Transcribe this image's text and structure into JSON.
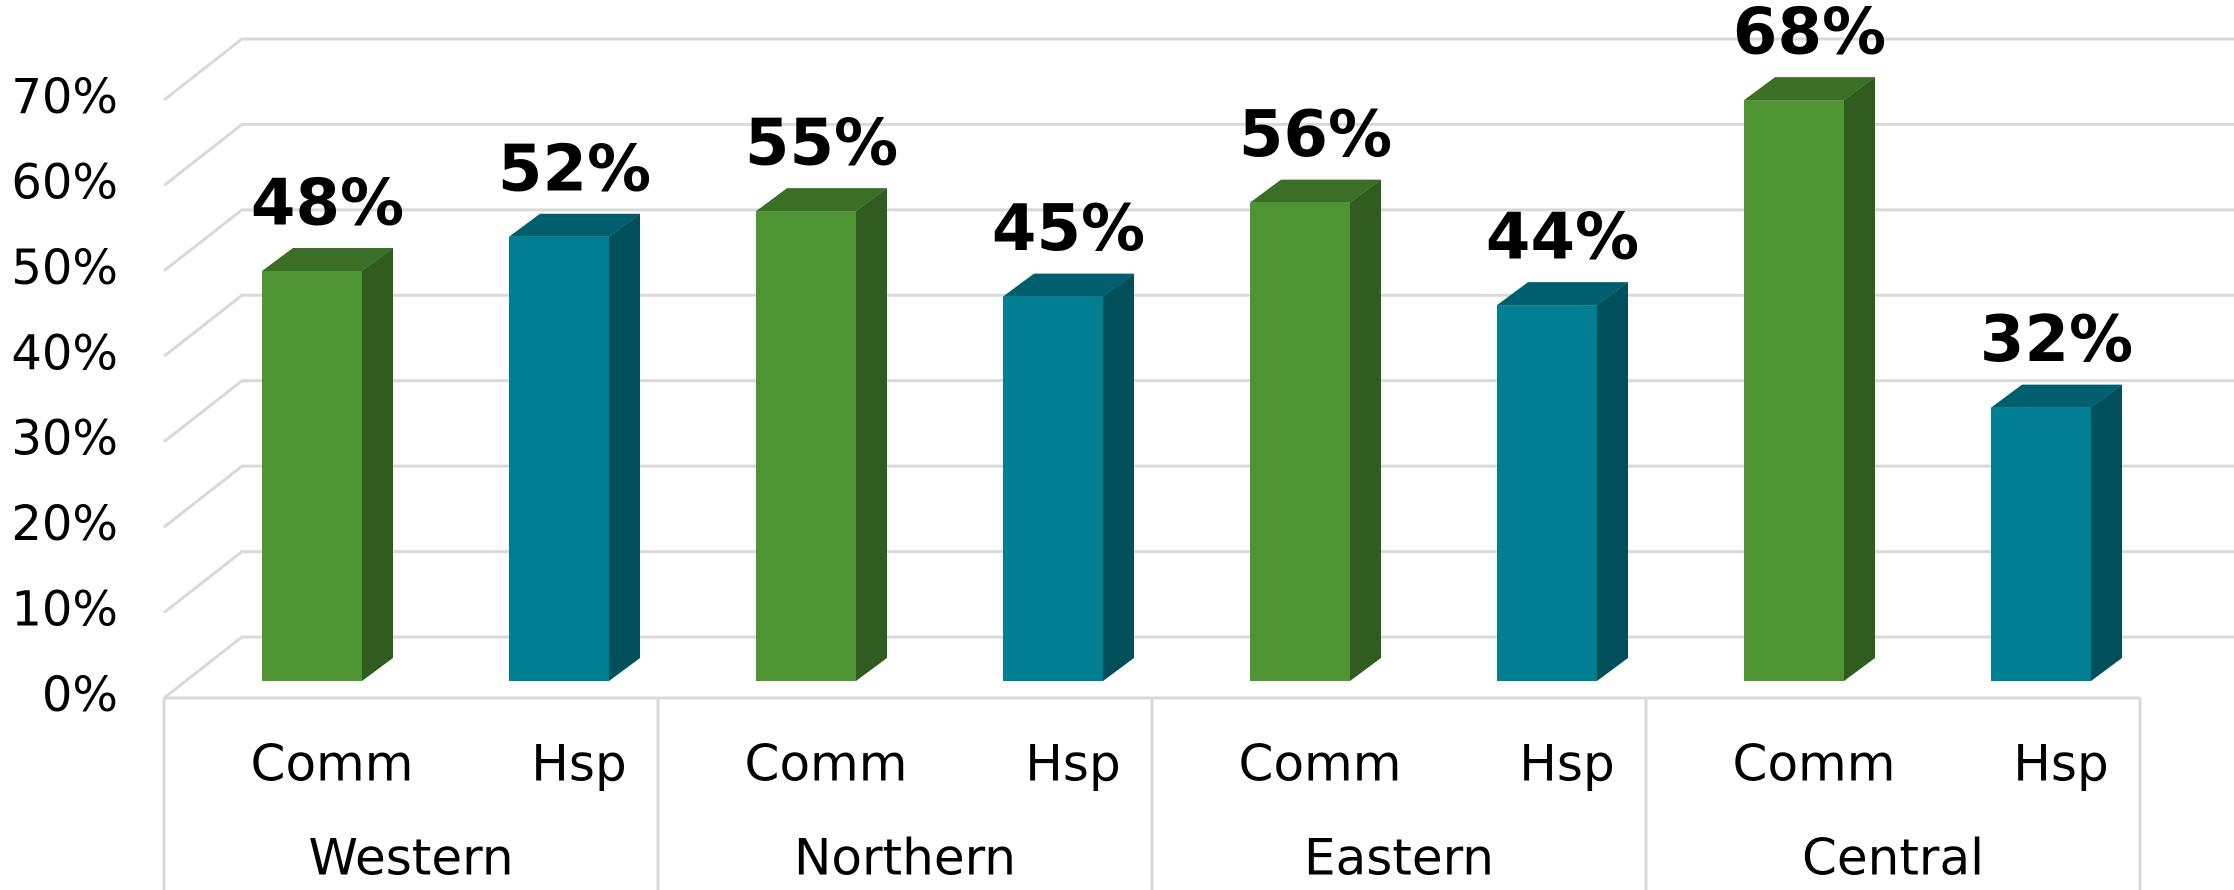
{
  "chart_data": {
    "type": "bar3d",
    "categories": [
      "Comm",
      "Hsp",
      "Comm",
      "Hsp",
      "Comm",
      "Hsp",
      "Comm",
      "Hsp"
    ],
    "groups": [
      "Western",
      "Northern",
      "Eastern",
      "Central"
    ],
    "values": [
      48,
      52,
      55,
      45,
      56,
      44,
      68,
      32
    ],
    "value_labels": [
      "48%",
      "52%",
      "55%",
      "45%",
      "56%",
      "44%",
      "68%",
      "32%"
    ],
    "colors": [
      "#4f9433",
      "#007f93"
    ],
    "ylim": [
      0,
      70
    ],
    "yticks": [
      {
        "value": 0,
        "label": "0%"
      },
      {
        "value": 10,
        "label": "10%"
      },
      {
        "value": 20,
        "label": "20%"
      },
      {
        "value": 30,
        "label": "30%"
      },
      {
        "value": 40,
        "label": "40%"
      },
      {
        "value": 50,
        "label": "50%"
      },
      {
        "value": 60,
        "label": "60%"
      },
      {
        "value": 70,
        "label": "70%"
      }
    ],
    "grid": true
  }
}
